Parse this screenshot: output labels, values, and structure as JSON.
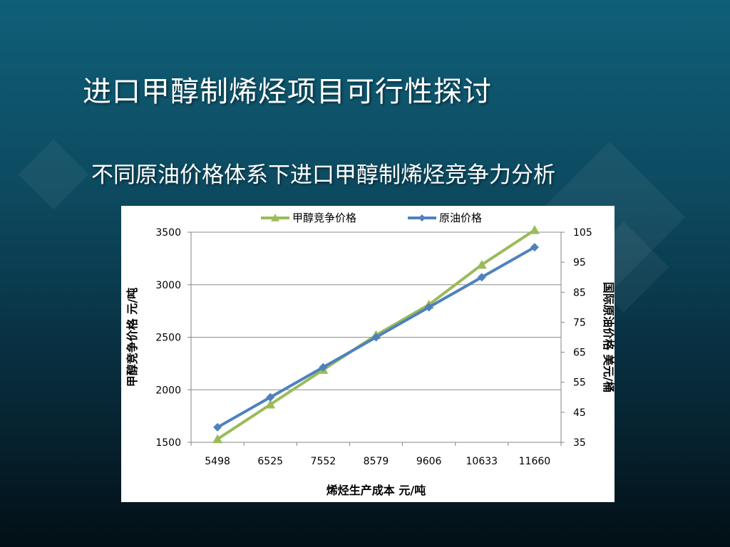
{
  "slide": {
    "title": "进口甲醇制烯烃项目可行性探讨",
    "subtitle": "不同原油价格体系下进口甲醇制烯烃竞争力分析"
  },
  "chart_data": {
    "type": "line",
    "categories": [
      "5498",
      "6525",
      "7552",
      "8579",
      "9606",
      "10633",
      "11660"
    ],
    "xlabel": "烯烃生产成本  元/吨",
    "ylabel_left": "甲醇竞争价格  元/吨",
    "ylabel_right": "国际原油价格  美元/桶",
    "ylim_left": [
      1500,
      3500
    ],
    "yticks_left": [
      1500,
      2000,
      2500,
      3000,
      3500
    ],
    "ylim_right": [
      35,
      105
    ],
    "yticks_right": [
      35,
      45,
      55,
      65,
      75,
      85,
      95,
      105
    ],
    "grid": true,
    "legend_position": "top",
    "series": [
      {
        "name": "甲醇竞争价格",
        "axis": "left",
        "marker": "triangle",
        "color": "#9bbb59",
        "values": [
          1530,
          1860,
          2190,
          2520,
          2810,
          3190,
          3520
        ]
      },
      {
        "name": "原油价格",
        "axis": "right",
        "marker": "diamond",
        "color": "#4f81bd",
        "values": [
          40,
          50,
          60,
          70,
          80,
          90,
          100
        ]
      }
    ]
  }
}
